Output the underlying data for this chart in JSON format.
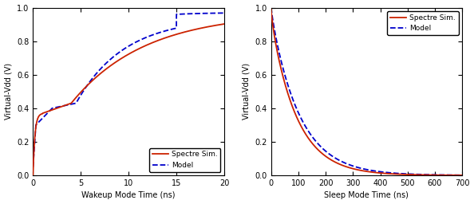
{
  "left": {
    "xlabel": "Wakeup Mode Time (ns)",
    "ylabel": "Virtual-Vdd (V)",
    "xlim": [
      0,
      20
    ],
    "ylim": [
      0,
      1.0
    ],
    "xticks": [
      0,
      5,
      10,
      15,
      20
    ],
    "yticks": [
      0.0,
      0.2,
      0.4,
      0.6,
      0.8,
      1.0
    ],
    "spectre_color": "#cc2200",
    "model_color": "#0000cc",
    "legend_loc": "lower right"
  },
  "right": {
    "xlabel": "Sleep Mode Time (ns)",
    "ylabel": "Virtual-Vdd (V)",
    "xlim": [
      0,
      700
    ],
    "ylim": [
      0,
      1.0
    ],
    "xticks": [
      0,
      100,
      200,
      300,
      400,
      500,
      600,
      700
    ],
    "yticks": [
      0.0,
      0.2,
      0.4,
      0.6,
      0.8,
      1.0
    ],
    "spectre_color": "#cc2200",
    "model_color": "#0000cc",
    "legend_loc": "upper right"
  },
  "legend_labels": [
    "Spectre Sim.",
    "Model"
  ],
  "fig_bgcolor": "#ffffff",
  "ax_bgcolor": "#ffffff"
}
